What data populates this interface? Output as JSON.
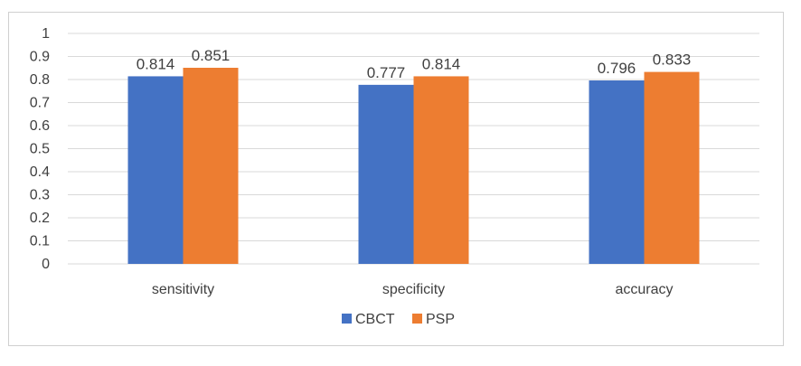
{
  "chart_data": {
    "type": "bar",
    "title": "",
    "xlabel": "",
    "ylabel": "",
    "categories": [
      "sensitivity",
      "specificity",
      "accuracy"
    ],
    "series": [
      {
        "name": "CBCT",
        "values": [
          0.814,
          0.777,
          0.796
        ],
        "color": "#4472C4"
      },
      {
        "name": "PSP",
        "values": [
          0.851,
          0.814,
          0.833
        ],
        "color": "#ED7D31"
      }
    ],
    "data_labels": [
      [
        "0.814",
        "0.777",
        "0.796"
      ],
      [
        "0.851",
        "0.814",
        "0.833"
      ]
    ],
    "ylim": [
      0,
      1
    ],
    "yticks": [
      "0",
      "0.1",
      "0.2",
      "0.3",
      "0.4",
      "0.5",
      "0.6",
      "0.7",
      "0.8",
      "0.9",
      "1"
    ],
    "grid": true,
    "legend_position": "bottom",
    "colors": {
      "gridline": "#d9d9d9",
      "text": "#404040",
      "border": "#d0d0d0"
    }
  }
}
